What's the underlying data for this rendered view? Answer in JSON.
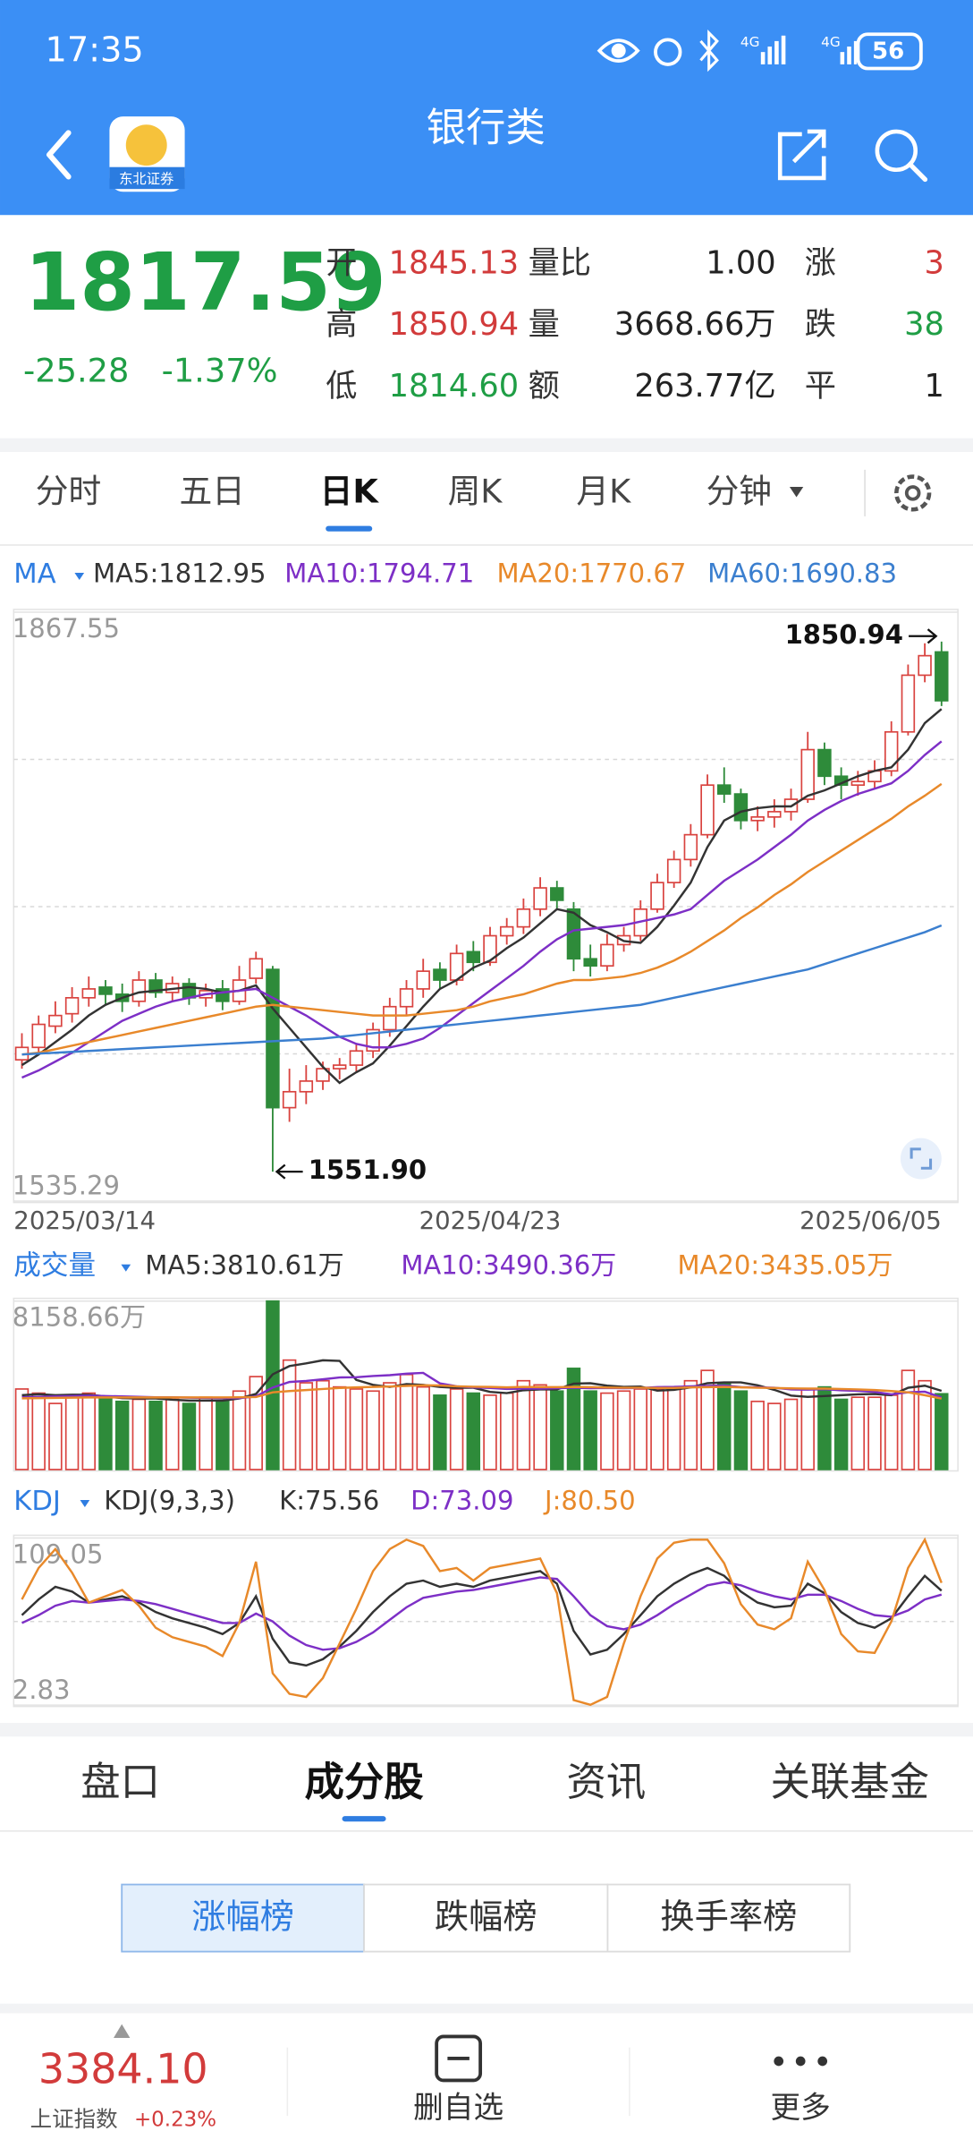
{
  "status_bar": {
    "time": "17:35",
    "signals": [
      "4G",
      "4G"
    ],
    "battery": "56"
  },
  "header": {
    "title": "银行类",
    "logo_text": "东北证券"
  },
  "quote": {
    "price": "1817.59",
    "change": "-25.28",
    "change_pct": "-1.37%",
    "color": "#1f9e45",
    "stats": [
      [
        {
          "label": "开",
          "value": "1845.13",
          "color": "#d23b3b"
        },
        {
          "label": "量比",
          "value": "1.00",
          "color": "#222222"
        },
        {
          "label": "涨",
          "value": "3",
          "color": "#d23b3b"
        }
      ],
      [
        {
          "label": "高",
          "value": "1850.94",
          "color": "#d23b3b"
        },
        {
          "label": "量",
          "value": "3668.66万",
          "color": "#222222"
        },
        {
          "label": "跌",
          "value": "38",
          "color": "#1f9e45"
        }
      ],
      [
        {
          "label": "低",
          "value": "1814.60",
          "color": "#1f9e45"
        },
        {
          "label": "额",
          "value": "263.77亿",
          "color": "#222222"
        },
        {
          "label": "平",
          "value": "1",
          "color": "#222222"
        }
      ]
    ]
  },
  "period_tabs": {
    "items": [
      "分时",
      "五日",
      "日K",
      "周K",
      "月K",
      "分钟"
    ],
    "selected": 2
  },
  "chart_data": [
    {
      "type": "candlestick",
      "title": "MA",
      "up_color": "#d9433f",
      "down_color": "#2e8b3a",
      "grid": true,
      "categories": [
        "2025/03/14",
        null,
        null,
        null,
        null,
        null,
        null,
        null,
        null,
        null,
        null,
        null,
        null,
        null,
        null,
        null,
        null,
        null,
        null,
        null,
        null,
        null,
        null,
        null,
        null,
        null,
        null,
        null,
        "2025/04/23",
        null,
        null,
        null,
        null,
        null,
        null,
        null,
        null,
        null,
        null,
        null,
        null,
        null,
        null,
        null,
        null,
        null,
        null,
        null,
        null,
        null,
        null,
        null,
        null,
        null,
        null,
        "2025/06/05"
      ],
      "open": [
        1615,
        1622,
        1634,
        1641,
        1650,
        1656,
        1652,
        1648,
        1660,
        1653,
        1658,
        1650,
        1655,
        1648,
        1661,
        1666,
        1588,
        1597,
        1603,
        1610,
        1612,
        1620,
        1632,
        1645,
        1655,
        1666,
        1660,
        1676,
        1670,
        1685,
        1690,
        1700,
        1712,
        1700,
        1672,
        1668,
        1680,
        1685,
        1700,
        1715,
        1728,
        1742,
        1770,
        1765,
        1750,
        1752,
        1755,
        1762,
        1790,
        1775,
        1770,
        1772,
        1778,
        1800,
        1832,
        1845.13
      ],
      "high": [
        1630,
        1640,
        1648,
        1656,
        1662,
        1660,
        1658,
        1665,
        1664,
        1662,
        1661,
        1658,
        1660,
        1668,
        1676,
        1668,
        1610,
        1612,
        1614,
        1616,
        1624,
        1636,
        1650,
        1660,
        1672,
        1670,
        1680,
        1682,
        1690,
        1695,
        1706,
        1718,
        1716,
        1704,
        1680,
        1686,
        1690,
        1705,
        1720,
        1733,
        1748,
        1776,
        1780,
        1768,
        1758,
        1762,
        1768,
        1800,
        1794,
        1780,
        1778,
        1784,
        1806,
        1838,
        1850,
        1850.94
      ],
      "low": [
        1610,
        1618,
        1630,
        1636,
        1645,
        1646,
        1642,
        1645,
        1650,
        1648,
        1646,
        1645,
        1643,
        1646,
        1658,
        1551.9,
        1580,
        1590,
        1598,
        1604,
        1608,
        1616,
        1628,
        1640,
        1650,
        1655,
        1657,
        1665,
        1668,
        1680,
        1686,
        1696,
        1700,
        1665,
        1662,
        1665,
        1676,
        1682,
        1698,
        1712,
        1724,
        1740,
        1760,
        1745,
        1744,
        1746,
        1750,
        1760,
        1770,
        1762,
        1764,
        1768,
        1775,
        1798,
        1828,
        1814.6
      ],
      "close": [
        1622,
        1635,
        1640,
        1650,
        1655,
        1652,
        1648,
        1660,
        1653,
        1658,
        1650,
        1654,
        1648,
        1660,
        1672,
        1588,
        1597,
        1603,
        1610,
        1612,
        1620,
        1632,
        1645,
        1655,
        1665,
        1660,
        1675,
        1670,
        1685,
        1690,
        1700,
        1712,
        1705,
        1672,
        1668,
        1680,
        1685,
        1700,
        1715,
        1728,
        1742,
        1770,
        1765,
        1750,
        1752,
        1755,
        1762,
        1790,
        1775,
        1770,
        1772,
        1778,
        1800,
        1832,
        1843,
        1817.59
      ],
      "series": [
        {
          "name": "MA5:1812.95",
          "color": "#333333",
          "values": [
            1612,
            1618,
            1625,
            1632,
            1640,
            1646,
            1650,
            1653,
            1654,
            1655,
            1656,
            1655,
            1653,
            1654,
            1657,
            1644,
            1633,
            1622,
            1611,
            1602,
            1608,
            1613,
            1623,
            1634,
            1645,
            1655,
            1660,
            1667,
            1671,
            1678,
            1684,
            1692,
            1700,
            1698,
            1691,
            1687,
            1682,
            1681,
            1690,
            1702,
            1715,
            1735,
            1750,
            1755,
            1757,
            1758,
            1758,
            1764,
            1767,
            1771,
            1775,
            1778,
            1780,
            1790,
            1805,
            1812.95
          ]
        },
        {
          "name": "MA10:1794.71",
          "color": "#7d2fc6",
          "values": [
            1605,
            1609,
            1614,
            1619,
            1625,
            1631,
            1637,
            1641,
            1645,
            1648,
            1650,
            1652,
            1653,
            1654,
            1655,
            1650,
            1645,
            1640,
            1634,
            1628,
            1624,
            1622,
            1622,
            1624,
            1627,
            1633,
            1640,
            1647,
            1654,
            1661,
            1668,
            1676,
            1683,
            1688,
            1689,
            1690,
            1691,
            1693,
            1695,
            1697,
            1700,
            1708,
            1716,
            1722,
            1728,
            1735,
            1742,
            1750,
            1756,
            1761,
            1765,
            1768,
            1771,
            1778,
            1787,
            1794.71
          ]
        },
        {
          "name": "MA20:1770.67",
          "color": "#e8892a",
          "values": [
            1618,
            1619,
            1621,
            1623,
            1625,
            1627,
            1629,
            1631,
            1633,
            1635,
            1637,
            1639,
            1641,
            1643,
            1645,
            1646,
            1645,
            1644,
            1643,
            1642,
            1641,
            1640,
            1640,
            1640,
            1641,
            1642,
            1643,
            1645,
            1648,
            1650,
            1652,
            1655,
            1658,
            1660,
            1660,
            1661,
            1662,
            1664,
            1667,
            1671,
            1676,
            1682,
            1688,
            1695,
            1701,
            1708,
            1714,
            1721,
            1727,
            1733,
            1739,
            1745,
            1751,
            1758,
            1764,
            1770.67
          ]
        },
        {
          "name": "MA60:1690.83",
          "color": "#3b7fcf",
          "values": [
            1618,
            1618.5,
            1619,
            1619.5,
            1620,
            1620.5,
            1621,
            1621.5,
            1622,
            1622.5,
            1623,
            1623.5,
            1624,
            1624.5,
            1625,
            1625.5,
            1626,
            1626.5,
            1627,
            1628,
            1629,
            1630,
            1631,
            1632,
            1633,
            1634,
            1635,
            1636,
            1637,
            1638,
            1639,
            1640,
            1641,
            1642,
            1643,
            1644,
            1645,
            1646,
            1648,
            1650,
            1652,
            1654,
            1656,
            1658,
            1660,
            1662,
            1664,
            1666,
            1669,
            1672,
            1675,
            1678,
            1681,
            1684,
            1687,
            1690.83
          ]
        }
      ],
      "ylim": [
        1535.29,
        1867.55
      ],
      "yticks": [
        1535.29,
        1867.55
      ],
      "annotations": {
        "max_label": "1850.94",
        "min_label": "1551.90"
      }
    },
    {
      "type": "bar",
      "title": "成交量",
      "grid": false,
      "values": [
        3900,
        3700,
        3200,
        3600,
        3700,
        3500,
        3300,
        3400,
        3300,
        3400,
        3200,
        3500,
        3300,
        3800,
        4500,
        8158.66,
        5300,
        4200,
        4300,
        4000,
        3900,
        3800,
        4200,
        4600,
        4000,
        3600,
        3900,
        3700,
        3600,
        3700,
        4300,
        4100,
        3800,
        4900,
        3800,
        3700,
        3800,
        3900,
        3900,
        4000,
        4300,
        4800,
        4200,
        3800,
        3300,
        3200,
        3400,
        3900,
        4000,
        3400,
        3500,
        3500,
        3600,
        4800,
        4300,
        3668.66
      ],
      "series": [
        {
          "name": "MA5:3810.61万",
          "color": "#333333",
          "values": [
            3600,
            3650,
            3600,
            3620,
            3620,
            3540,
            3460,
            3440,
            3440,
            3380,
            3340,
            3340,
            3340,
            3440,
            3660,
            4610,
            5010,
            5140,
            5290,
            5260,
            4340,
            4100,
            4000,
            4140,
            4100,
            4000,
            3960,
            3960,
            3760,
            3700,
            3840,
            3880,
            3880,
            4160,
            4180,
            4060,
            4000,
            4020,
            3820,
            3860,
            3980,
            4180,
            4220,
            4220,
            4080,
            3860,
            3580,
            3520,
            3560,
            3600,
            3640,
            3660,
            3600,
            3960,
            4060,
            3810.61
          ]
        },
        {
          "name": "MA10:3490.36万",
          "color": "#7d2fc6",
          "values": [
            3500,
            3520,
            3540,
            3560,
            3580,
            3560,
            3540,
            3520,
            3500,
            3500,
            3480,
            3470,
            3460,
            3460,
            3540,
            3970,
            4240,
            4290,
            4370,
            4460,
            4470,
            4530,
            4570,
            4640,
            4680,
            4170,
            4030,
            3980,
            3950,
            3900,
            3920,
            3920,
            3940,
            3960,
            3940,
            3950,
            3940,
            3950,
            3990,
            4000,
            4030,
            4050,
            4070,
            3990,
            3980,
            3960,
            3880,
            3870,
            3890,
            3840,
            3810,
            3760,
            3640,
            3740,
            3770,
            3490.36
          ]
        },
        {
          "name": "MA20:3435.05万",
          "color": "#e8892a",
          "values": [
            3450,
            3460,
            3470,
            3480,
            3490,
            3490,
            3490,
            3490,
            3490,
            3490,
            3490,
            3490,
            3490,
            3500,
            3510,
            3740,
            3800,
            3850,
            3900,
            3950,
            3980,
            4000,
            4020,
            4050,
            4080,
            4070,
            4030,
            4010,
            4000,
            3980,
            4000,
            3990,
            3990,
            4000,
            3990,
            3970,
            3960,
            3960,
            3950,
            3950,
            3980,
            3990,
            4000,
            3980,
            3960,
            3950,
            3930,
            3920,
            3920,
            3900,
            3880,
            3850,
            3800,
            3740,
            3600,
            3435.05
          ]
        }
      ],
      "ylim": [
        0,
        8158.66
      ],
      "yticks": [
        {
          "value": 8158.66,
          "label": "8158.66万"
        }
      ]
    },
    {
      "type": "line",
      "title": "KDJ",
      "params": "KDJ(9,3,3)",
      "grid": true,
      "series": [
        {
          "name": "K:75.56",
          "color": "#333333",
          "values": [
            60,
            70,
            78,
            75,
            68,
            70,
            72,
            68,
            62,
            58,
            55,
            52,
            48,
            55,
            72,
            45,
            30,
            28,
            32,
            40,
            50,
            62,
            72,
            80,
            82,
            78,
            80,
            78,
            82,
            84,
            86,
            88,
            80,
            50,
            35,
            38,
            48,
            60,
            72,
            80,
            86,
            90,
            85,
            75,
            68,
            65,
            66,
            80,
            74,
            62,
            55,
            52,
            58,
            72,
            85,
            75.56
          ]
        },
        {
          "name": "D:73.09",
          "color": "#7d2fc6",
          "values": [
            55,
            60,
            66,
            69,
            68,
            69,
            70,
            69,
            67,
            64,
            61,
            58,
            55,
            55,
            61,
            56,
            47,
            41,
            38,
            39,
            43,
            49,
            57,
            65,
            71,
            73,
            75,
            76,
            78,
            80,
            82,
            84,
            83,
            72,
            60,
            53,
            51,
            54,
            60,
            67,
            73,
            79,
            81,
            79,
            75,
            72,
            70,
            73,
            73,
            69,
            64,
            60,
            59,
            63,
            70,
            73.09
          ]
        },
        {
          "name": "J:80.50",
          "color": "#e8892a",
          "values": [
            70,
            90,
            102,
            87,
            68,
            72,
            76,
            66,
            52,
            46,
            43,
            40,
            34,
            55,
            94,
            23,
            10,
            8,
            20,
            42,
            64,
            88,
            102,
            108,
            104,
            88,
            90,
            82,
            90,
            92,
            94,
            96,
            74,
            6,
            3,
            8,
            42,
            72,
            96,
            106,
            108,
            108,
            93,
            67,
            54,
            51,
            58,
            94,
            76,
            48,
            37,
            36,
            56,
            90,
            108,
            80.5
          ]
        }
      ],
      "ylim": [
        2.83,
        109.05
      ],
      "yticks": [
        2.83,
        109.05
      ]
    }
  ],
  "section_tabs": {
    "items": [
      "盘口",
      "成分股",
      "资讯",
      "关联基金"
    ],
    "selected": 1
  },
  "rank_tabs": {
    "items": [
      "涨幅榜",
      "跌幅榜",
      "换手率榜"
    ],
    "selected": 0
  },
  "bottom_bar": {
    "index_value": "3384.10",
    "index_name": "上证指数",
    "index_change": "+0.23%",
    "actions": [
      "删自选",
      "更多"
    ]
  }
}
